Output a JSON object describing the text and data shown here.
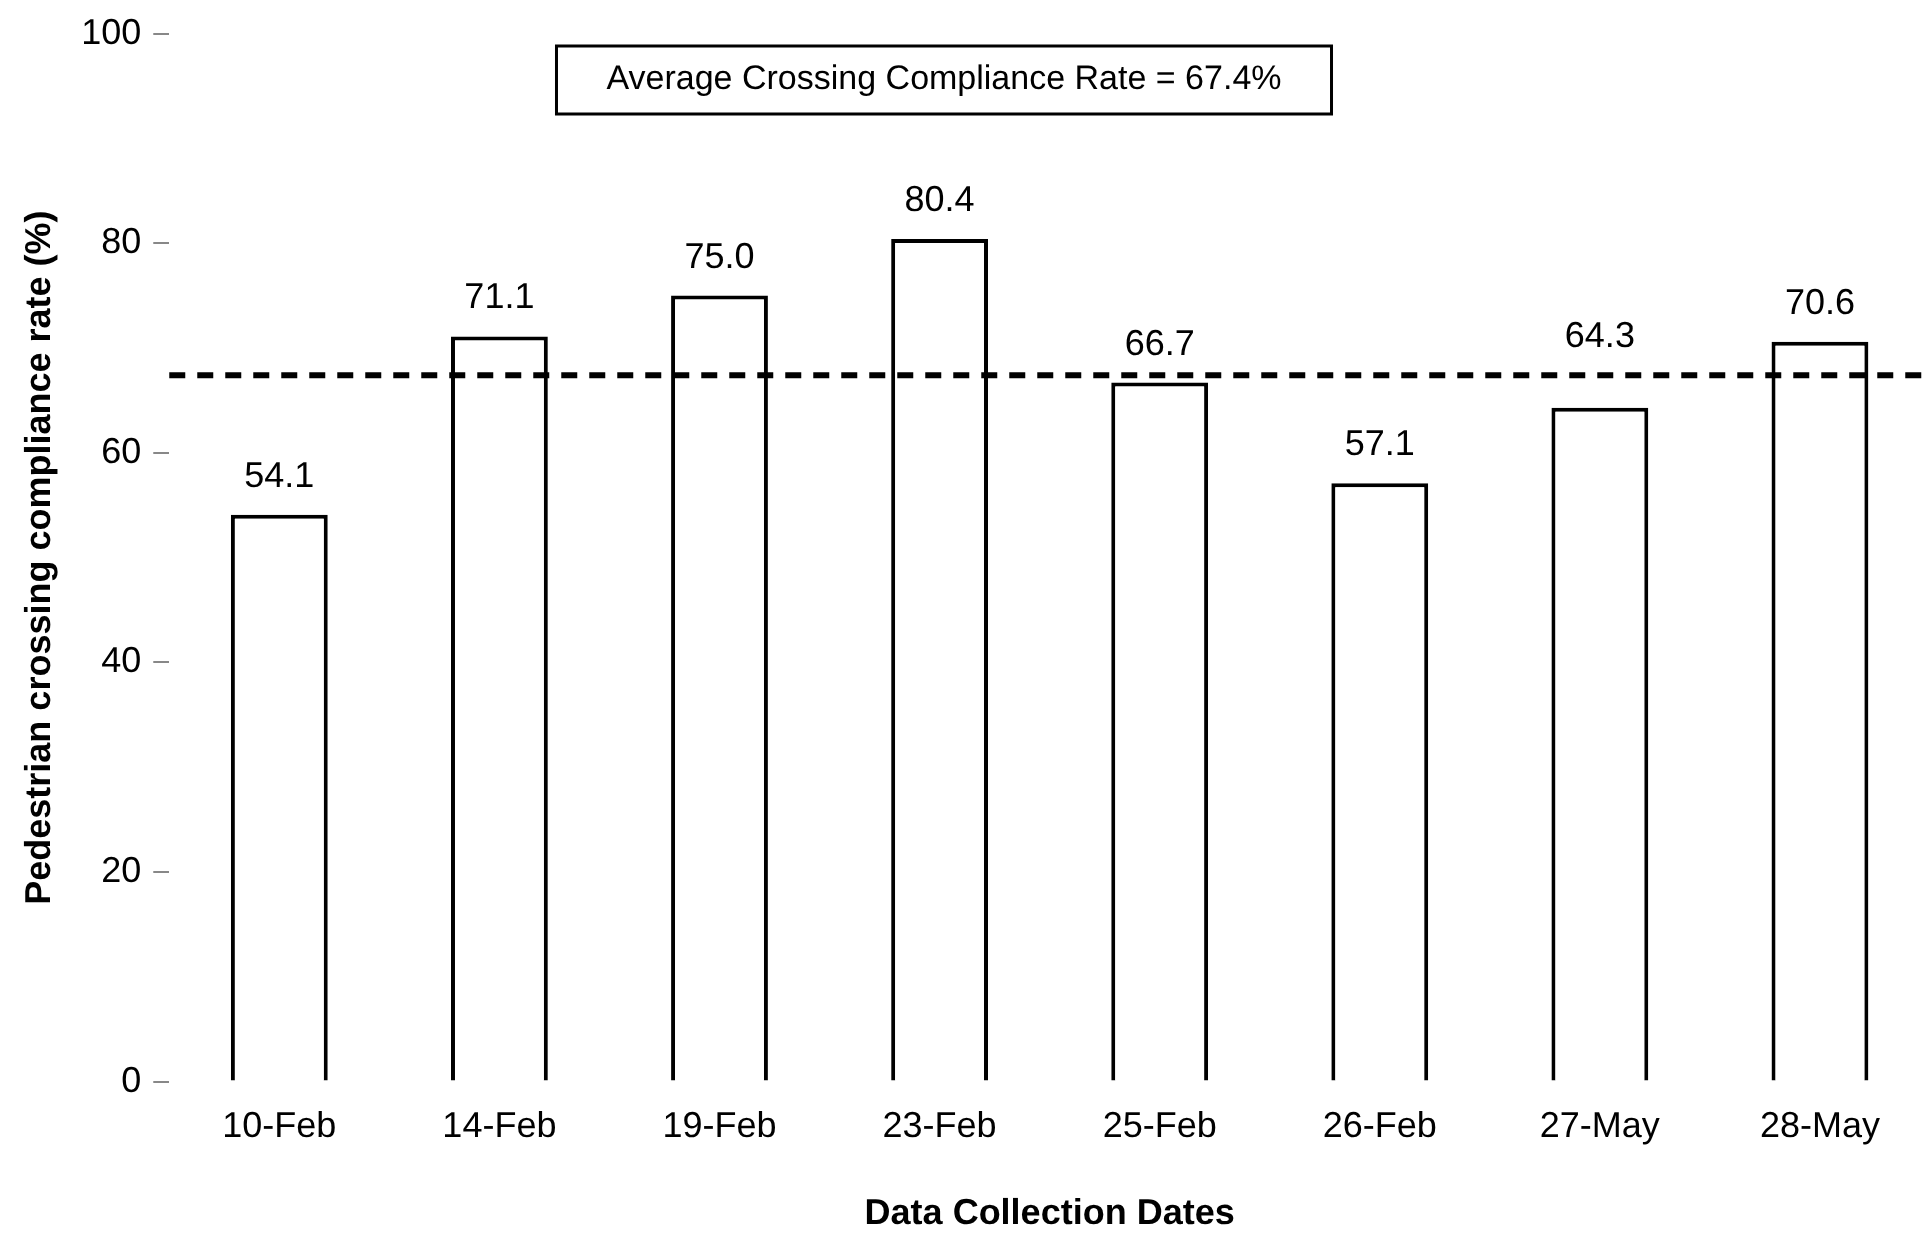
{
  "chart_data": {
    "type": "bar",
    "xlabel": "Data Collection Dates",
    "ylabel": "Pedestrian crossing compliance rate (%)",
    "categories": [
      "10-Feb",
      "14-Feb",
      "19-Feb",
      "23-Feb",
      "25-Feb",
      "26-Feb",
      "27-May",
      "28-May"
    ],
    "values": [
      54.1,
      71.1,
      75.0,
      80.4,
      66.7,
      57.1,
      64.3,
      70.6
    ],
    "value_labels": [
      "54.1",
      "71.1",
      "75.0",
      "80.4",
      "66.7",
      "57.1",
      "64.3",
      "70.6"
    ],
    "color": "#ffffff",
    "ylim": [
      0,
      100
    ],
    "yticks": [
      0,
      20,
      40,
      60,
      80,
      100
    ],
    "ref_lines": [
      {
        "axis": "y",
        "value": 67.4,
        "label": "Average Crossing Compliance Rate = 67.4%",
        "color": "#000000",
        "line_style": "dashed"
      }
    ],
    "grid": false,
    "legend": false
  }
}
